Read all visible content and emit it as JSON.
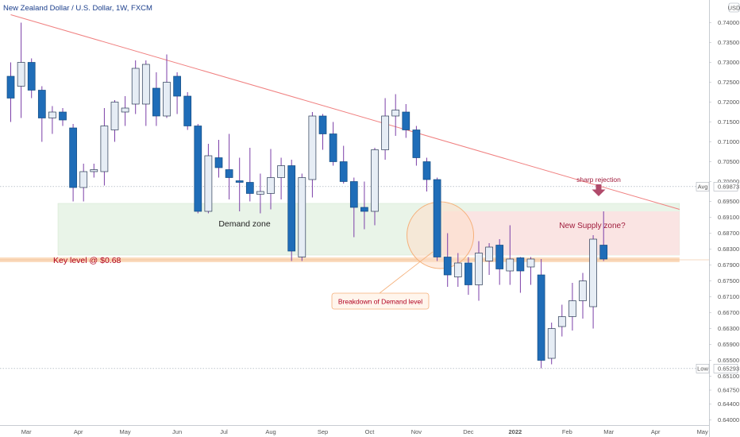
{
  "header": {
    "title": "New Zealand Dollar / U.S. Dollar, 1W, FXCM",
    "currency": "USD"
  },
  "colors": {
    "bear": "#1f6db8",
    "bull": "#e6edf5",
    "wick": "#7b3fa8",
    "trendline": "#f08080",
    "demand_zone": "#e9f4e8",
    "supply_zone": "#fbe3e3",
    "key_level": "#f7c08a",
    "annotation_red": "#b00020",
    "rejection_arrow": "#b04a6a"
  },
  "chart_data": {
    "type": "candlestick",
    "title": "New Zealand Dollar / U.S. Dollar, 1W, FXCM",
    "ylim": [
      0.6393,
      0.7449
    ],
    "y_ticks": [
      "0.74000",
      "0.73500",
      "0.73000",
      "0.72500",
      "0.72000",
      "0.71500",
      "0.71000",
      "0.70500",
      "0.70000",
      "0.69500",
      "0.69100",
      "0.68700",
      "0.68300",
      "0.67900",
      "0.67500",
      "0.67100",
      "0.66700",
      "0.66300",
      "0.65900",
      "0.65500",
      "0.65100",
      "0.64750",
      "0.64400",
      "0.64000"
    ],
    "x_labels": [
      {
        "label": "Mar",
        "index": 1.5
      },
      {
        "label": "Apr",
        "index": 6.5
      },
      {
        "label": "May",
        "index": 11
      },
      {
        "label": "Jun",
        "index": 16
      },
      {
        "label": "Jul",
        "index": 20.5
      },
      {
        "label": "Aug",
        "index": 25
      },
      {
        "label": "Sep",
        "index": 30
      },
      {
        "label": "Oct",
        "index": 34.5
      },
      {
        "label": "Nov",
        "index": 39
      },
      {
        "label": "Dec",
        "index": 44
      },
      {
        "label": "2022",
        "index": 48.5
      },
      {
        "label": "Feb",
        "index": 53.5
      },
      {
        "label": "Mar",
        "index": 57.5
      },
      {
        "label": "Apr",
        "index": 62
      },
      {
        "label": "May",
        "index": 66.5
      }
    ],
    "candles": [
      {
        "o": 0.7265,
        "h": 0.73,
        "l": 0.715,
        "c": 0.721
      },
      {
        "o": 0.724,
        "h": 0.74,
        "l": 0.716,
        "c": 0.73
      },
      {
        "o": 0.73,
        "h": 0.731,
        "l": 0.721,
        "c": 0.723
      },
      {
        "o": 0.723,
        "h": 0.724,
        "l": 0.71,
        "c": 0.716
      },
      {
        "o": 0.716,
        "h": 0.719,
        "l": 0.712,
        "c": 0.7175
      },
      {
        "o": 0.7175,
        "h": 0.7185,
        "l": 0.714,
        "c": 0.7155
      },
      {
        "o": 0.7135,
        "h": 0.7145,
        "l": 0.695,
        "c": 0.6985
      },
      {
        "o": 0.6985,
        "h": 0.7045,
        "l": 0.695,
        "c": 0.7025
      },
      {
        "o": 0.7025,
        "h": 0.7045,
        "l": 0.701,
        "c": 0.703
      },
      {
        "o": 0.7025,
        "h": 0.7185,
        "l": 0.699,
        "c": 0.714
      },
      {
        "o": 0.713,
        "h": 0.7205,
        "l": 0.71,
        "c": 0.72
      },
      {
        "o": 0.7175,
        "h": 0.7215,
        "l": 0.714,
        "c": 0.7185
      },
      {
        "o": 0.7195,
        "h": 0.7305,
        "l": 0.717,
        "c": 0.7285
      },
      {
        "o": 0.7195,
        "h": 0.7305,
        "l": 0.714,
        "c": 0.7295
      },
      {
        "o": 0.7235,
        "h": 0.7275,
        "l": 0.714,
        "c": 0.7165
      },
      {
        "o": 0.7165,
        "h": 0.732,
        "l": 0.716,
        "c": 0.725
      },
      {
        "o": 0.7265,
        "h": 0.7275,
        "l": 0.717,
        "c": 0.7215
      },
      {
        "o": 0.7215,
        "h": 0.7225,
        "l": 0.713,
        "c": 0.714
      },
      {
        "o": 0.714,
        "h": 0.7145,
        "l": 0.692,
        "c": 0.6925
      },
      {
        "o": 0.6925,
        "h": 0.7095,
        "l": 0.692,
        "c": 0.7065
      },
      {
        "o": 0.706,
        "h": 0.7105,
        "l": 0.701,
        "c": 0.7035
      },
      {
        "o": 0.703,
        "h": 0.712,
        "l": 0.6955,
        "c": 0.701
      },
      {
        "o": 0.7002,
        "h": 0.706,
        "l": 0.6925,
        "c": 0.6998
      },
      {
        "o": 0.6998,
        "h": 0.7085,
        "l": 0.695,
        "c": 0.697
      },
      {
        "o": 0.6968,
        "h": 0.702,
        "l": 0.692,
        "c": 0.6975
      },
      {
        "o": 0.697,
        "h": 0.7082,
        "l": 0.693,
        "c": 0.701
      },
      {
        "o": 0.701,
        "h": 0.706,
        "l": 0.6955,
        "c": 0.704
      },
      {
        "o": 0.704,
        "h": 0.7055,
        "l": 0.68,
        "c": 0.6825
      },
      {
        "o": 0.681,
        "h": 0.702,
        "l": 0.68,
        "c": 0.701
      },
      {
        "o": 0.7005,
        "h": 0.7175,
        "l": 0.696,
        "c": 0.7165
      },
      {
        "o": 0.7165,
        "h": 0.717,
        "l": 0.708,
        "c": 0.712
      },
      {
        "o": 0.712,
        "h": 0.715,
        "l": 0.704,
        "c": 0.705
      },
      {
        "o": 0.705,
        "h": 0.709,
        "l": 0.6995,
        "c": 0.7
      },
      {
        "o": 0.7,
        "h": 0.701,
        "l": 0.686,
        "c": 0.6935
      },
      {
        "o": 0.6935,
        "h": 0.7,
        "l": 0.688,
        "c": 0.6925
      },
      {
        "o": 0.6925,
        "h": 0.7085,
        "l": 0.689,
        "c": 0.708
      },
      {
        "o": 0.708,
        "h": 0.721,
        "l": 0.7055,
        "c": 0.7165
      },
      {
        "o": 0.7165,
        "h": 0.722,
        "l": 0.7115,
        "c": 0.718
      },
      {
        "o": 0.7175,
        "h": 0.7195,
        "l": 0.711,
        "c": 0.713
      },
      {
        "o": 0.713,
        "h": 0.714,
        "l": 0.704,
        "c": 0.706
      },
      {
        "o": 0.705,
        "h": 0.706,
        "l": 0.6975,
        "c": 0.7005
      },
      {
        "o": 0.7005,
        "h": 0.701,
        "l": 0.68,
        "c": 0.681
      },
      {
        "o": 0.681,
        "h": 0.687,
        "l": 0.6735,
        "c": 0.6765
      },
      {
        "o": 0.676,
        "h": 0.682,
        "l": 0.6735,
        "c": 0.6795
      },
      {
        "o": 0.6795,
        "h": 0.681,
        "l": 0.6715,
        "c": 0.674
      },
      {
        "o": 0.674,
        "h": 0.685,
        "l": 0.67,
        "c": 0.682
      },
      {
        "o": 0.68,
        "h": 0.6845,
        "l": 0.6765,
        "c": 0.6835
      },
      {
        "o": 0.684,
        "h": 0.6855,
        "l": 0.674,
        "c": 0.678
      },
      {
        "o": 0.6775,
        "h": 0.689,
        "l": 0.674,
        "c": 0.6805
      },
      {
        "o": 0.6808,
        "h": 0.681,
        "l": 0.672,
        "c": 0.6775
      },
      {
        "o": 0.6785,
        "h": 0.681,
        "l": 0.674,
        "c": 0.6805
      },
      {
        "o": 0.6765,
        "h": 0.6805,
        "l": 0.653,
        "c": 0.655
      },
      {
        "o": 0.6555,
        "h": 0.6645,
        "l": 0.654,
        "c": 0.663
      },
      {
        "o": 0.6635,
        "h": 0.669,
        "l": 0.661,
        "c": 0.666
      },
      {
        "o": 0.666,
        "h": 0.6745,
        "l": 0.6625,
        "c": 0.67
      },
      {
        "o": 0.67,
        "h": 0.677,
        "l": 0.6655,
        "c": 0.675
      },
      {
        "o": 0.6685,
        "h": 0.6865,
        "l": 0.663,
        "c": 0.6855
      },
      {
        "o": 0.684,
        "h": 0.6925,
        "l": 0.68,
        "c": 0.6805
      }
    ],
    "trendline": [
      {
        "index": 0,
        "price": 0.742
      },
      {
        "index": 64.3,
        "price": 0.693
      }
    ],
    "zones": {
      "demand": {
        "from": 5,
        "to": 64.3,
        "low": 0.6815,
        "high": 0.6945
      },
      "supply": {
        "from": 42,
        "to": 64.3,
        "low": 0.6815,
        "high": 0.6925
      },
      "key_level": {
        "from": 0,
        "to": 64.3,
        "low": 0.6797,
        "high": 0.6809
      },
      "breakdown_circle": {
        "index": 41.3,
        "price": 0.6865
      }
    },
    "price_tags": [
      {
        "label": "Avg",
        "value": "0.69873",
        "price": 0.69873
      },
      {
        "label": "Low",
        "value": "0.65293",
        "price": 0.65293
      }
    ]
  },
  "annotations": {
    "demand_zone": "Demand zone",
    "key_level": "Key level @ $0.68",
    "breakdown": "Breakdown of Demand level",
    "supply_zone": "New Supply zone?",
    "sharp_rejection": "sharp rejection"
  }
}
